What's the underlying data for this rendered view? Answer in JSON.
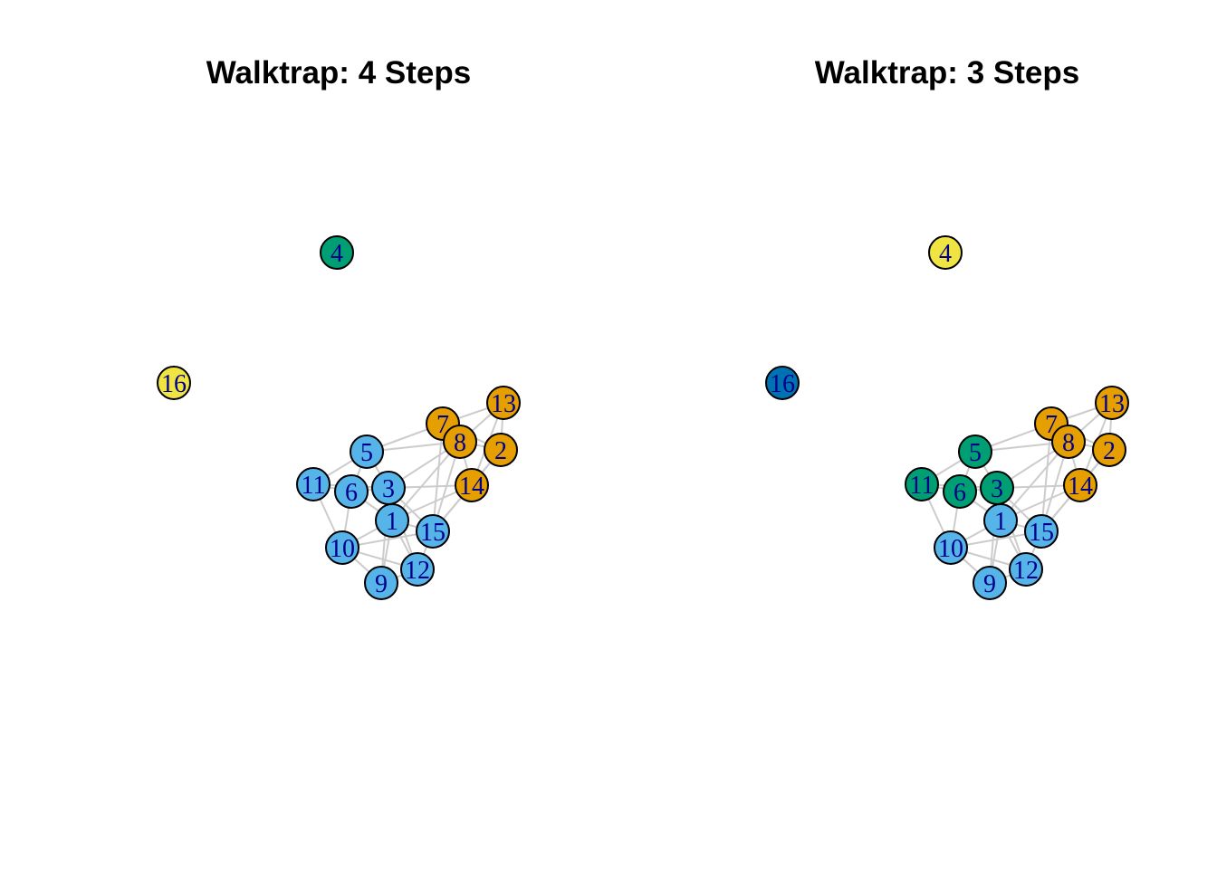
{
  "panels": [
    {
      "title": "Walktrap: 4 Steps",
      "membership": {
        "1": "blue",
        "2": "orange",
        "3": "blue",
        "4": "green",
        "5": "blue",
        "6": "blue",
        "7": "orange",
        "8": "orange",
        "9": "blue",
        "10": "blue",
        "11": "blue",
        "12": "blue",
        "13": "orange",
        "14": "orange",
        "15": "blue",
        "16": "yellow"
      }
    },
    {
      "title": "Walktrap: 3 Steps",
      "membership": {
        "1": "blue",
        "2": "orange",
        "3": "green",
        "4": "yellow",
        "5": "green",
        "6": "green",
        "7": "orange",
        "8": "orange",
        "9": "blue",
        "10": "blue",
        "11": "green",
        "12": "blue",
        "13": "orange",
        "14": "orange",
        "15": "blue",
        "16": "darkblue"
      }
    }
  ],
  "node_labels": [
    "1",
    "2",
    "3",
    "4",
    "5",
    "6",
    "7",
    "8",
    "9",
    "10",
    "11",
    "12",
    "13",
    "14",
    "15",
    "16"
  ],
  "edges": [
    [
      "5",
      "11"
    ],
    [
      "5",
      "6"
    ],
    [
      "5",
      "3"
    ],
    [
      "5",
      "7"
    ],
    [
      "5",
      "8"
    ],
    [
      "11",
      "6"
    ],
    [
      "11",
      "10"
    ],
    [
      "11",
      "3"
    ],
    [
      "6",
      "3"
    ],
    [
      "6",
      "10"
    ],
    [
      "6",
      "1"
    ],
    [
      "3",
      "1"
    ],
    [
      "3",
      "15"
    ],
    [
      "3",
      "14"
    ],
    [
      "3",
      "12"
    ],
    [
      "3",
      "8"
    ],
    [
      "1",
      "10"
    ],
    [
      "1",
      "9"
    ],
    [
      "1",
      "12"
    ],
    [
      "1",
      "15"
    ],
    [
      "10",
      "9"
    ],
    [
      "10",
      "12"
    ],
    [
      "10",
      "15"
    ],
    [
      "9",
      "12"
    ],
    [
      "9",
      "3"
    ],
    [
      "12",
      "15"
    ],
    [
      "15",
      "14"
    ],
    [
      "15",
      "7"
    ],
    [
      "15",
      "8"
    ],
    [
      "15",
      "2"
    ],
    [
      "7",
      "8"
    ],
    [
      "7",
      "13"
    ],
    [
      "7",
      "2"
    ],
    [
      "8",
      "13"
    ],
    [
      "8",
      "2"
    ],
    [
      "8",
      "14"
    ],
    [
      "8",
      "1"
    ],
    [
      "13",
      "2"
    ],
    [
      "13",
      "14"
    ],
    [
      "2",
      "14"
    ],
    [
      "14",
      "1"
    ]
  ],
  "colors": {
    "blue": "#56b4e9",
    "orange": "#e69f00",
    "green": "#009e73",
    "yellow": "#f0e442",
    "darkblue": "#0072b2"
  }
}
